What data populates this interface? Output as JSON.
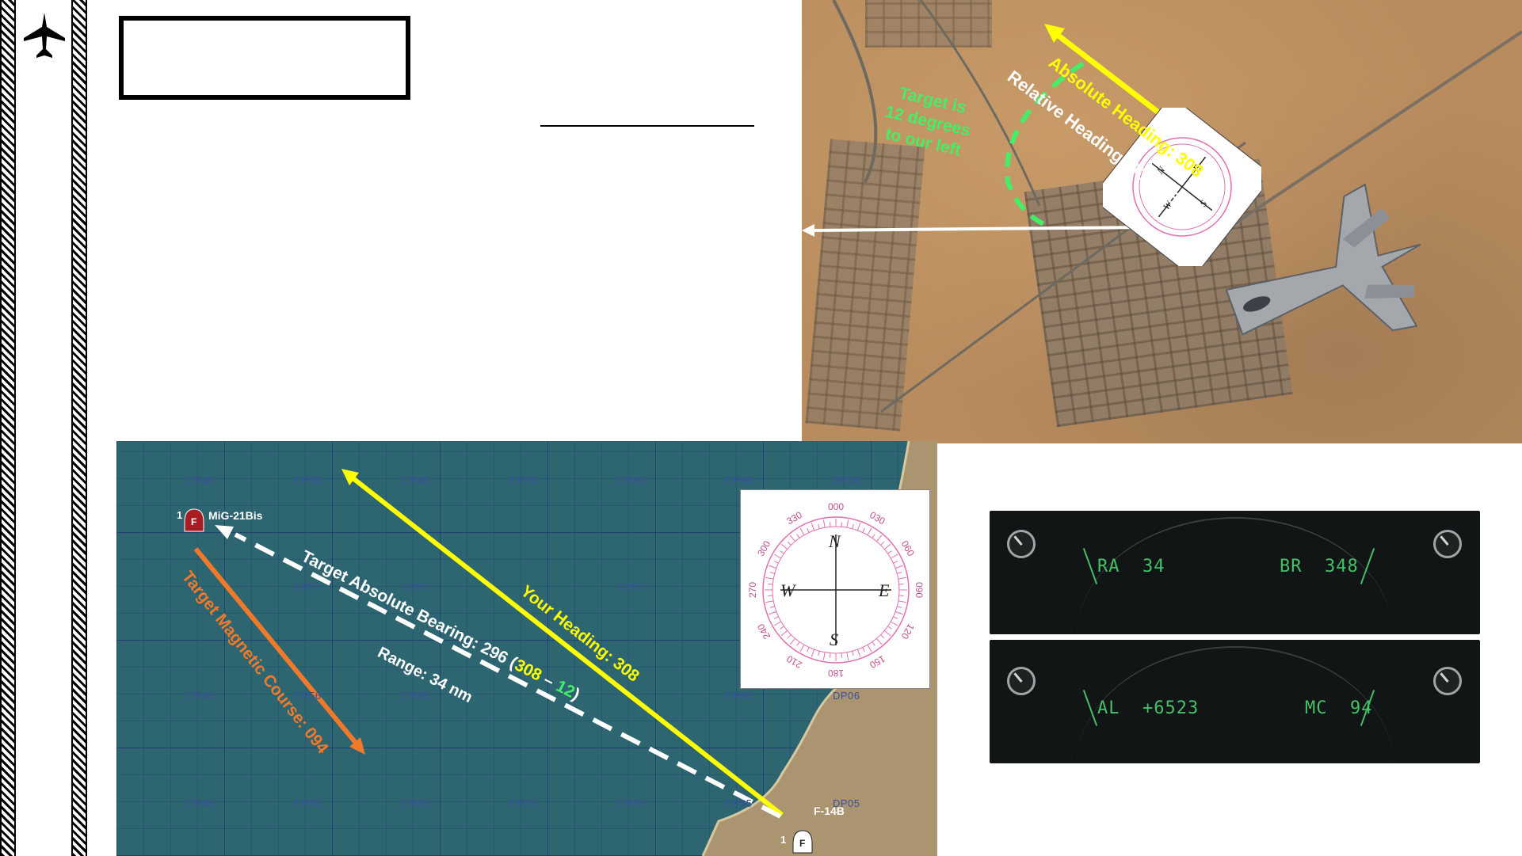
{
  "sidebar": {
    "icon": "jet-fighter-icon"
  },
  "photo": {
    "absolute_heading": "Absolute Heading:  308",
    "relative_heading": "Relative Heading:  000 /360",
    "target_note_line1": "Target is",
    "target_note_line2": "12 degrees",
    "target_note_line3": "to our left"
  },
  "map": {
    "grid_labels": [
      "CP48",
      "CP58",
      "CP68",
      "CP78",
      "CP88",
      "CP98",
      "DP08",
      "CP57",
      "CP67",
      "CP87",
      "CP46",
      "CP56",
      "CP66",
      "CP96",
      "DP06",
      "CP45",
      "CP55",
      "CP65",
      "CP75",
      "CP85",
      "CP95",
      "DP05"
    ],
    "target_label": "MiG-21Bis",
    "target_group": "1",
    "target_marker": "F",
    "own_label": "F-14B",
    "own_group": "1",
    "own_marker": "F",
    "your_heading": "Your Heading:  308",
    "bearing_prefix": "Target Absolute Bearing: 296 (",
    "bearing_a": "308",
    "bearing_sep": " – ",
    "bearing_b": "12",
    "bearing_suffix": ")",
    "range": "Range: 34 nm",
    "target_course": "Target Magnetic Course: 094"
  },
  "compass": {
    "N": "N",
    "E": "E",
    "S": "S",
    "W": "W",
    "ticks": [
      "000",
      "030",
      "060",
      "090",
      "120",
      "150",
      "180",
      "210",
      "240",
      "270",
      "300",
      "330"
    ]
  },
  "displays": [
    {
      "left": "RA  34",
      "right": "BR  348"
    },
    {
      "left": "AL  +6523",
      "right": "MC  94"
    }
  ],
  "colors": {
    "yellow": "#ffff00",
    "green": "#44ee66",
    "orange": "#f07a2a",
    "pink": "#e070b0",
    "map_water": "#2d6670",
    "display_text": "#45c068"
  }
}
